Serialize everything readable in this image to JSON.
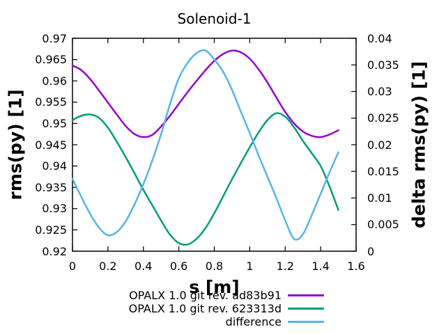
{
  "chart_data": {
    "type": "line",
    "title": "Solenoid-1",
    "xlabel": "s [m]",
    "ylabel_left": "rms(py) [1]",
    "ylabel_right": "delta rms(py) [1]",
    "xlim": [
      0,
      1.6
    ],
    "ylim_left": [
      0.92,
      0.97
    ],
    "ylim_right": [
      0,
      0.04
    ],
    "grid": false,
    "legend_position": "below-plot-right",
    "background_color": "#ffffff",
    "axis_color": "#000000",
    "x_ticks": {
      "values": [
        0,
        0.2,
        0.4,
        0.6,
        0.8,
        1.0,
        1.2,
        1.4,
        1.6
      ],
      "labels": [
        "0",
        "0.2",
        "0.4",
        "0.6",
        "0.8",
        "1",
        "1.2",
        "1.4",
        "1.6"
      ]
    },
    "y_left_ticks": {
      "values": [
        0.92,
        0.925,
        0.93,
        0.935,
        0.94,
        0.945,
        0.95,
        0.955,
        0.96,
        0.965,
        0.97
      ],
      "labels": [
        "0.92",
        "0.925",
        "0.93",
        "0.935",
        "0.94",
        "0.945",
        "0.95",
        "0.955",
        "0.96",
        "0.965",
        "0.97"
      ]
    },
    "y_right_ticks": {
      "values": [
        0,
        0.005,
        0.01,
        0.015,
        0.02,
        0.025,
        0.03,
        0.035,
        0.04
      ],
      "labels": [
        "0",
        "0.005",
        "0.01",
        "0.015",
        "0.02",
        "0.025",
        "0.03",
        "0.035",
        "0.04"
      ]
    },
    "x": [
      0,
      0.05,
      0.1,
      0.15,
      0.2,
      0.25,
      0.3,
      0.35,
      0.4,
      0.45,
      0.5,
      0.55,
      0.6,
      0.65,
      0.7,
      0.75,
      0.8,
      0.85,
      0.9,
      0.95,
      1.0,
      1.05,
      1.1,
      1.15,
      1.2,
      1.25,
      1.3,
      1.35,
      1.4,
      1.45,
      1.5
    ],
    "series": [
      {
        "name": "OPALX 1.0 git rev. ad83b91",
        "axis": "left",
        "color": "#9400d3",
        "values": [
          0.9636,
          0.9625,
          0.9604,
          0.9577,
          0.9549,
          0.9521,
          0.9494,
          0.9475,
          0.9468,
          0.9473,
          0.9493,
          0.9518,
          0.9546,
          0.9574,
          0.96,
          0.9625,
          0.9647,
          0.9663,
          0.9671,
          0.9667,
          0.9652,
          0.9627,
          0.9596,
          0.9561,
          0.9527,
          0.95,
          0.9481,
          0.9471,
          0.9468,
          0.9474,
          0.9484
        ]
      },
      {
        "name": "OPALX 1.0 git rev. 623313d",
        "axis": "left",
        "color": "#009e73",
        "values": [
          0.9508,
          0.9518,
          0.9521,
          0.9513,
          0.949,
          0.9457,
          0.9421,
          0.9383,
          0.9344,
          0.9308,
          0.9272,
          0.9239,
          0.9219,
          0.9216,
          0.9229,
          0.9254,
          0.9289,
          0.9329,
          0.9369,
          0.9407,
          0.9444,
          0.9479,
          0.9508,
          0.9524,
          0.9516,
          0.9491,
          0.9459,
          0.943,
          0.94,
          0.9352,
          0.9297
        ]
      },
      {
        "name": "difference",
        "axis": "right",
        "color": "#56b4e9",
        "values": [
          0.0136,
          0.0102,
          0.007,
          0.0044,
          0.003,
          0.0036,
          0.0056,
          0.0088,
          0.0126,
          0.017,
          0.022,
          0.0276,
          0.0325,
          0.0354,
          0.0372,
          0.0377,
          0.036,
          0.0337,
          0.0303,
          0.0262,
          0.0222,
          0.018,
          0.014,
          0.01,
          0.0058,
          0.0023,
          0.0032,
          0.0068,
          0.0108,
          0.0148,
          0.0186
        ]
      }
    ]
  }
}
